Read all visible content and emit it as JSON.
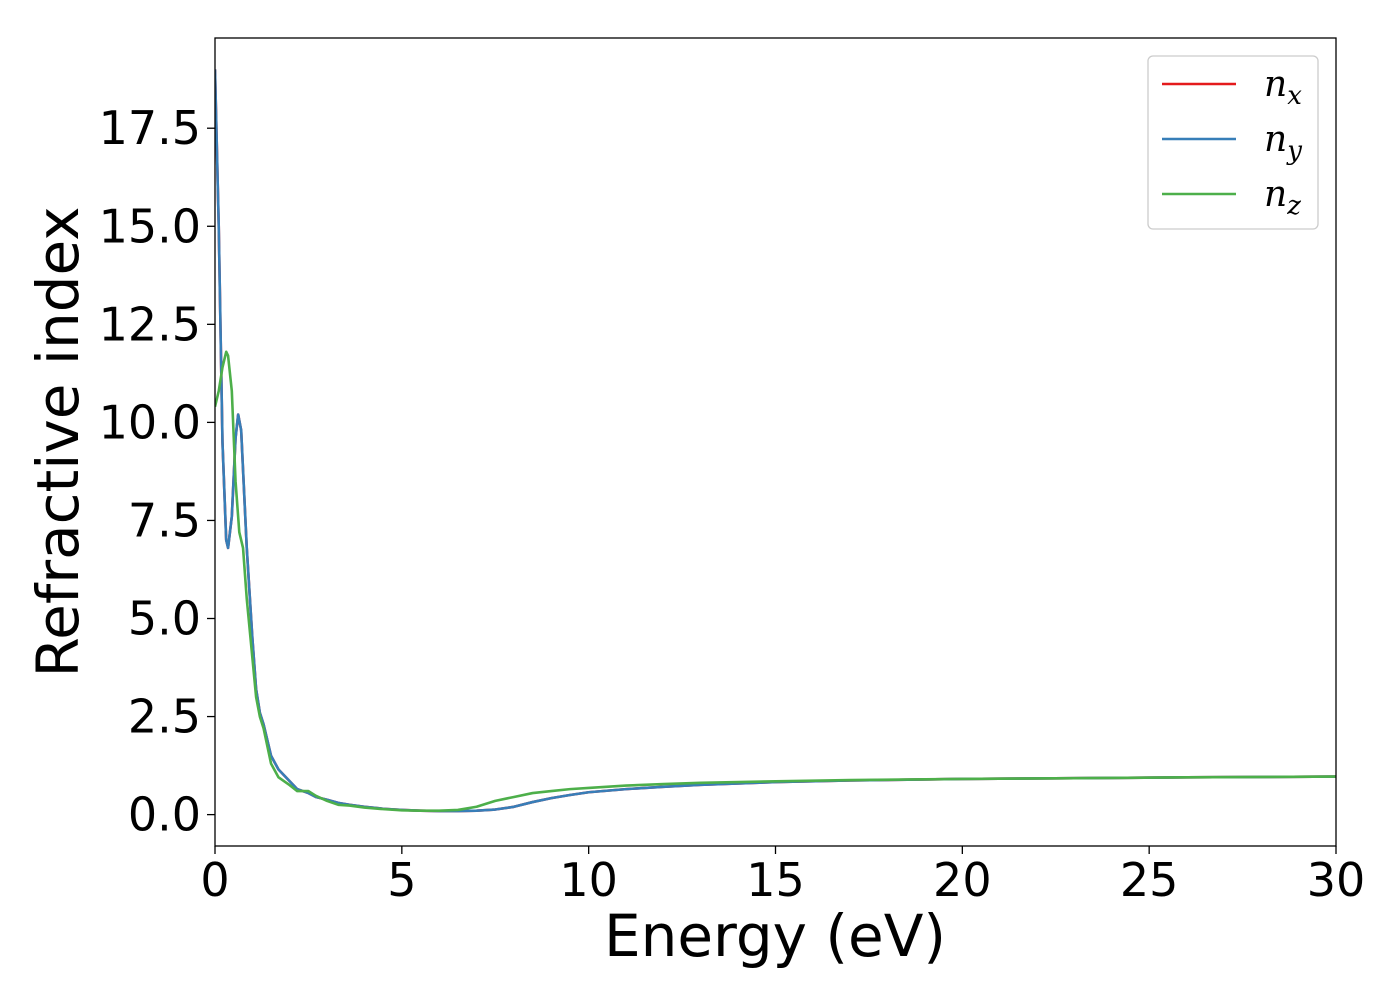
{
  "chart_data": {
    "type": "line",
    "xlabel": "Energy (eV)",
    "ylabel": "Refractive index",
    "xlim": [
      0,
      30
    ],
    "ylim": [
      -0.8,
      19.8
    ],
    "xticks": [
      "0",
      "5",
      "10",
      "15",
      "20",
      "25",
      "30"
    ],
    "yticks": [
      "0.0",
      "2.5",
      "5.0",
      "7.5",
      "10.0",
      "12.5",
      "15.0",
      "17.5"
    ],
    "grid": false,
    "legend_position": "top-right",
    "series": [
      {
        "name": "n_x",
        "label_base": "n",
        "label_sub": "x",
        "color": "#e41a1c",
        "points": [
          [
            0,
            19
          ],
          [
            0.1,
            15
          ],
          [
            0.2,
            9.5
          ],
          [
            0.3,
            7.0
          ],
          [
            0.35,
            6.8
          ],
          [
            0.45,
            7.6
          ],
          [
            0.55,
            9.6
          ],
          [
            0.62,
            10.2
          ],
          [
            0.7,
            9.8
          ],
          [
            0.85,
            6.8
          ],
          [
            1.0,
            4.5
          ],
          [
            1.1,
            3.2
          ],
          [
            1.2,
            2.6
          ],
          [
            1.3,
            2.3
          ],
          [
            1.5,
            1.5
          ],
          [
            1.7,
            1.15
          ],
          [
            2.0,
            0.85
          ],
          [
            2.2,
            0.65
          ],
          [
            2.5,
            0.55
          ],
          [
            2.7,
            0.45
          ],
          [
            3.0,
            0.38
          ],
          [
            3.3,
            0.3
          ],
          [
            3.6,
            0.25
          ],
          [
            4.0,
            0.2
          ],
          [
            4.5,
            0.15
          ],
          [
            5.0,
            0.12
          ],
          [
            5.5,
            0.1
          ],
          [
            6.0,
            0.09
          ],
          [
            6.5,
            0.09
          ],
          [
            7.0,
            0.1
          ],
          [
            7.5,
            0.13
          ],
          [
            8.0,
            0.2
          ],
          [
            8.5,
            0.32
          ],
          [
            9.0,
            0.42
          ],
          [
            9.5,
            0.5
          ],
          [
            10,
            0.57
          ],
          [
            11,
            0.65
          ],
          [
            12,
            0.71
          ],
          [
            13,
            0.76
          ],
          [
            15,
            0.83
          ],
          [
            17,
            0.87
          ],
          [
            20,
            0.91
          ],
          [
            23,
            0.93
          ],
          [
            26,
            0.95
          ],
          [
            30,
            0.97
          ]
        ]
      },
      {
        "name": "n_y",
        "label_base": "n",
        "label_sub": "y",
        "color": "#377eb8",
        "points": [
          [
            0,
            19
          ],
          [
            0.1,
            15
          ],
          [
            0.2,
            9.5
          ],
          [
            0.3,
            7.0
          ],
          [
            0.35,
            6.8
          ],
          [
            0.45,
            7.6
          ],
          [
            0.55,
            9.6
          ],
          [
            0.62,
            10.2
          ],
          [
            0.7,
            9.8
          ],
          [
            0.85,
            6.8
          ],
          [
            1.0,
            4.5
          ],
          [
            1.1,
            3.2
          ],
          [
            1.2,
            2.6
          ],
          [
            1.3,
            2.3
          ],
          [
            1.5,
            1.5
          ],
          [
            1.7,
            1.15
          ],
          [
            2.0,
            0.85
          ],
          [
            2.2,
            0.65
          ],
          [
            2.5,
            0.55
          ],
          [
            2.7,
            0.45
          ],
          [
            3.0,
            0.38
          ],
          [
            3.3,
            0.3
          ],
          [
            3.6,
            0.25
          ],
          [
            4.0,
            0.2
          ],
          [
            4.5,
            0.15
          ],
          [
            5.0,
            0.12
          ],
          [
            5.5,
            0.1
          ],
          [
            6.0,
            0.09
          ],
          [
            6.5,
            0.09
          ],
          [
            7.0,
            0.1
          ],
          [
            7.5,
            0.13
          ],
          [
            8.0,
            0.2
          ],
          [
            8.5,
            0.32
          ],
          [
            9.0,
            0.42
          ],
          [
            9.5,
            0.5
          ],
          [
            10,
            0.57
          ],
          [
            11,
            0.65
          ],
          [
            12,
            0.71
          ],
          [
            13,
            0.76
          ],
          [
            15,
            0.83
          ],
          [
            17,
            0.87
          ],
          [
            20,
            0.91
          ],
          [
            23,
            0.93
          ],
          [
            26,
            0.95
          ],
          [
            30,
            0.97
          ]
        ]
      },
      {
        "name": "n_z",
        "label_base": "n",
        "label_sub": "z",
        "color": "#4daf4a",
        "points": [
          [
            0,
            10.4
          ],
          [
            0.1,
            10.8
          ],
          [
            0.2,
            11.4
          ],
          [
            0.3,
            11.8
          ],
          [
            0.35,
            11.7
          ],
          [
            0.45,
            10.8
          ],
          [
            0.55,
            8.5
          ],
          [
            0.65,
            7.2
          ],
          [
            0.75,
            6.8
          ],
          [
            0.85,
            5.5
          ],
          [
            1.0,
            4.0
          ],
          [
            1.1,
            3.0
          ],
          [
            1.2,
            2.5
          ],
          [
            1.3,
            2.2
          ],
          [
            1.5,
            1.3
          ],
          [
            1.7,
            0.95
          ],
          [
            2.0,
            0.75
          ],
          [
            2.2,
            0.6
          ],
          [
            2.5,
            0.6
          ],
          [
            2.7,
            0.48
          ],
          [
            3.0,
            0.35
          ],
          [
            3.3,
            0.25
          ],
          [
            3.6,
            0.23
          ],
          [
            4.0,
            0.18
          ],
          [
            4.5,
            0.14
          ],
          [
            5.0,
            0.11
          ],
          [
            5.5,
            0.1
          ],
          [
            6.0,
            0.1
          ],
          [
            6.5,
            0.12
          ],
          [
            7.0,
            0.2
          ],
          [
            7.5,
            0.35
          ],
          [
            8.0,
            0.45
          ],
          [
            8.5,
            0.55
          ],
          [
            9.0,
            0.6
          ],
          [
            9.5,
            0.65
          ],
          [
            10,
            0.68
          ],
          [
            11,
            0.74
          ],
          [
            12,
            0.78
          ],
          [
            13,
            0.81
          ],
          [
            15,
            0.85
          ],
          [
            17,
            0.88
          ],
          [
            20,
            0.91
          ],
          [
            23,
            0.93
          ],
          [
            26,
            0.95
          ],
          [
            30,
            0.97
          ]
        ]
      }
    ]
  }
}
